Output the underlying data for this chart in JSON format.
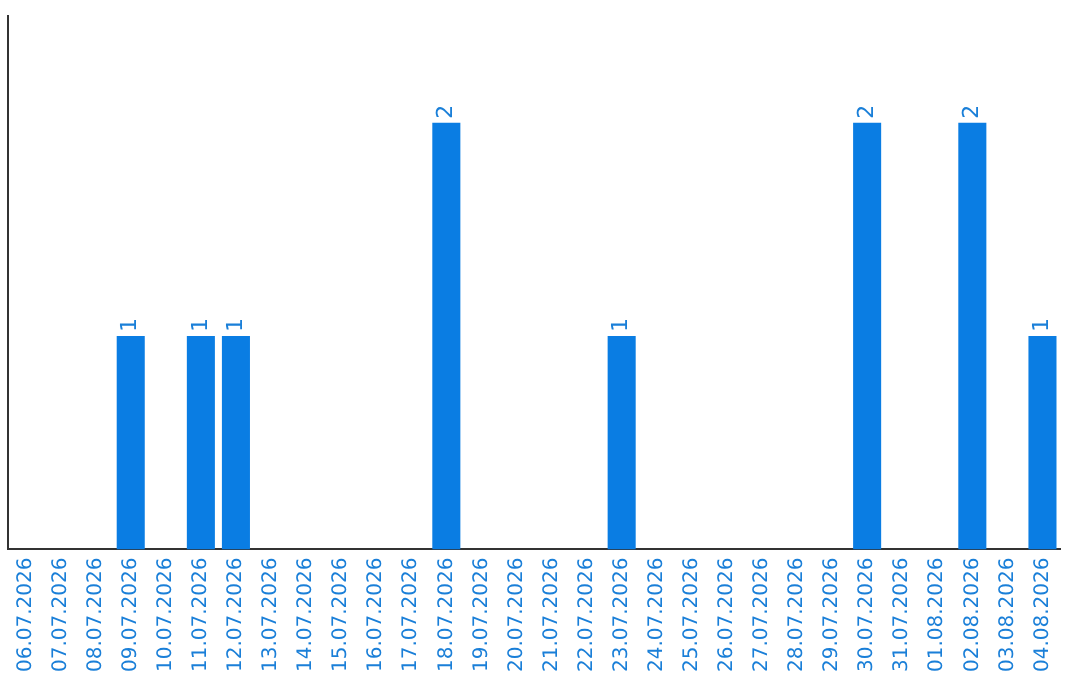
{
  "chart_data": {
    "type": "bar",
    "categories": [
      "06.07.2026",
      "07.07.2026",
      "08.07.2026",
      "09.07.2026",
      "10.07.2026",
      "11.07.2026",
      "12.07.2026",
      "13.07.2026",
      "14.07.2026",
      "15.07.2026",
      "16.07.2026",
      "17.07.2026",
      "18.07.2026",
      "19.07.2026",
      "20.07.2026",
      "21.07.2026",
      "22.07.2026",
      "23.07.2026",
      "24.07.2026",
      "25.07.2026",
      "26.07.2026",
      "27.07.2026",
      "28.07.2026",
      "29.07.2026",
      "30.07.2026",
      "31.07.2026",
      "01.08.2026",
      "02.08.2026",
      "03.08.2026",
      "04.08.2026"
    ],
    "values": [
      0,
      0,
      0,
      1,
      0,
      1,
      1,
      0,
      0,
      0,
      0,
      0,
      2,
      0,
      0,
      0,
      0,
      1,
      0,
      0,
      0,
      0,
      0,
      0,
      2,
      0,
      0,
      2,
      0,
      1
    ],
    "value_labels": [
      null,
      null,
      null,
      "1",
      null,
      "1",
      "1",
      null,
      null,
      null,
      null,
      null,
      "2",
      null,
      null,
      null,
      null,
      "1",
      null,
      null,
      null,
      null,
      null,
      null,
      "2",
      null,
      null,
      "2",
      null,
      "1"
    ],
    "color": "#0a7de3",
    "grid": false,
    "legend": false,
    "tick_labels": "x"
  }
}
